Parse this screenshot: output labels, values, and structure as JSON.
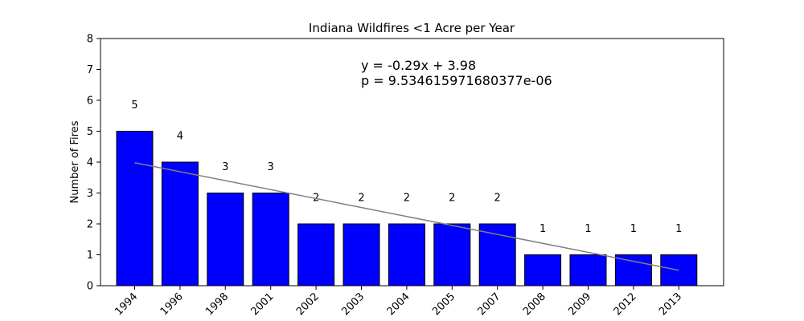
{
  "chart_data": {
    "type": "bar",
    "title": "Indiana Wildfires <1 Acre per Year",
    "xlabel": "",
    "ylabel": "Number of Fires",
    "categories": [
      "1994",
      "1996",
      "1998",
      "2001",
      "2002",
      "2003",
      "2004",
      "2005",
      "2007",
      "2008",
      "2009",
      "2012",
      "2013"
    ],
    "values": [
      5,
      4,
      3,
      3,
      2,
      2,
      2,
      2,
      2,
      1,
      1,
      1,
      1
    ],
    "ylim": [
      0,
      8
    ],
    "yticks": [
      "0",
      "1",
      "2",
      "3",
      "4",
      "5",
      "6",
      "7",
      "8"
    ],
    "bar_color": "#0000ff",
    "trendline": {
      "slope": -0.29,
      "intercept": 3.98,
      "color": "#808080"
    },
    "annotation": {
      "equation": "y = -0.29x + 3.98",
      "pvalue": "p = 9.534615971680377e-06"
    },
    "grid": false,
    "legend": "none"
  }
}
